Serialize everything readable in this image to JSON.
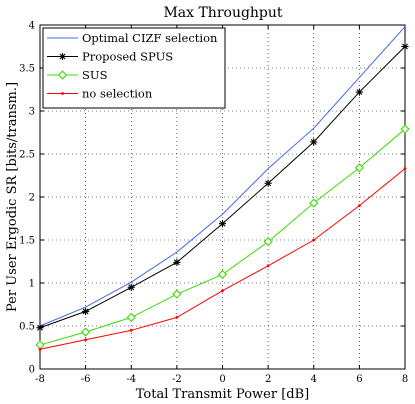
{
  "chart_data": {
    "type": "line",
    "title": "Max Throughput",
    "xlabel": "Total Transmit Power [dB]",
    "ylabel": "Per User Ergodic SR [bits/transm.]",
    "xlim": [
      -8,
      8
    ],
    "ylim": [
      0,
      4
    ],
    "x": [
      -8,
      -6,
      -4,
      -2,
      0,
      2,
      4,
      6,
      8
    ],
    "xticks": [
      -8,
      -6,
      -4,
      -2,
      0,
      2,
      4,
      6,
      8
    ],
    "yticks": [
      0,
      0.5,
      1,
      1.5,
      2,
      2.5,
      3,
      3.5,
      4
    ],
    "grid": true,
    "legend_position": "top-left",
    "series": [
      {
        "name": "Optimal CIZF selection",
        "color": "#4169e1",
        "marker": "none",
        "values": [
          0.5,
          0.72,
          1.01,
          1.36,
          1.8,
          2.33,
          2.8,
          3.39,
          3.98
        ]
      },
      {
        "name": "Proposed SPUS",
        "color": "#000000",
        "marker": "asterisk",
        "values": [
          0.48,
          0.67,
          0.95,
          1.24,
          1.69,
          2.16,
          2.64,
          3.22,
          3.75
        ]
      },
      {
        "name": "SUS",
        "color": "#3cdc00",
        "marker": "diamond",
        "values": [
          0.28,
          0.43,
          0.6,
          0.87,
          1.1,
          1.48,
          1.93,
          2.34,
          2.79
        ]
      },
      {
        "name": "no selection",
        "color": "#ff0000",
        "marker": "dot",
        "values": [
          0.23,
          0.34,
          0.45,
          0.6,
          0.91,
          1.2,
          1.5,
          1.9,
          2.33
        ]
      }
    ]
  }
}
